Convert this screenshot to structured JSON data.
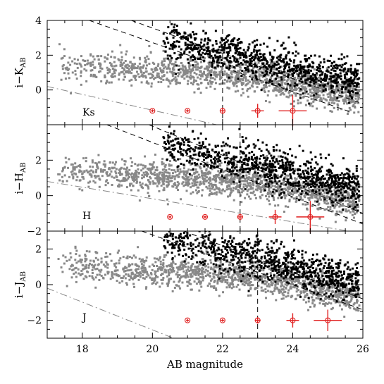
{
  "chart_data": [
    {
      "type": "scatter",
      "band": "Ks",
      "ylabel_main": "i−K",
      "ylabel_sub": "AB",
      "xlim": [
        17,
        26
      ],
      "ylim": [
        -2,
        4
      ],
      "yticks": [
        0,
        2,
        4
      ],
      "error_bars": [
        {
          "x": 20,
          "y": -1.2,
          "xerr": 0.03,
          "yerr": 0.05
        },
        {
          "x": 21,
          "y": -1.2,
          "xerr": 0.05,
          "yerr": 0.08
        },
        {
          "x": 22,
          "y": -1.2,
          "xerr": 0.08,
          "yerr": 0.18
        },
        {
          "x": 23,
          "y": -1.2,
          "xerr": 0.18,
          "yerr": 0.4
        },
        {
          "x": 24,
          "y": -1.2,
          "xerr": 0.4,
          "yerr": 0.9
        }
      ],
      "vertical_line_x": 22,
      "dashed_lines": [
        {
          "x1": 18.2,
          "y1": 4.0,
          "x2": 25.7,
          "y2": -1.3
        },
        {
          "x1": 19.4,
          "y1": 4.0,
          "x2": 26.0,
          "y2": -0.8
        }
      ],
      "dashdot_line": {
        "x1": 17.0,
        "y1": 0.2,
        "x2": 26.0,
        "y2": -3.9
      }
    },
    {
      "type": "scatter",
      "band": "H",
      "ylabel_main": "i−H",
      "ylabel_sub": "AB",
      "xlim": [
        17,
        26
      ],
      "ylim": [
        -2,
        4
      ],
      "yticks": [
        -2,
        0,
        2
      ],
      "error_bars": [
        {
          "x": 20.5,
          "y": -1.2,
          "xerr": 0.03,
          "yerr": 0.05
        },
        {
          "x": 21.5,
          "y": -1.2,
          "xerr": 0.05,
          "yerr": 0.08
        },
        {
          "x": 22.5,
          "y": -1.2,
          "xerr": 0.08,
          "yerr": 0.18
        },
        {
          "x": 23.5,
          "y": -1.2,
          "xerr": 0.18,
          "yerr": 0.4
        },
        {
          "x": 24.5,
          "y": -1.2,
          "xerr": 0.4,
          "yerr": 0.9
        }
      ],
      "vertical_line_x": 22.5,
      "dashed_lines": [
        {
          "x1": 18.7,
          "y1": 4.0,
          "x2": 26.0,
          "y2": -1.6
        },
        {
          "x1": 19.9,
          "y1": 4.0,
          "x2": 26.0,
          "y2": -1.0
        }
      ],
      "dashdot_line": {
        "x1": 17.0,
        "y1": 0.8,
        "x2": 25.6,
        "y2": -2.0
      }
    },
    {
      "type": "scatter",
      "band": "J",
      "ylabel_main": "i−J",
      "ylabel_sub": "AB",
      "xlim": [
        17,
        26
      ],
      "ylim": [
        -3,
        3
      ],
      "yticks": [
        -2,
        0,
        2
      ],
      "xticks": [
        18,
        20,
        22,
        24,
        26
      ],
      "xlabel": "AB magnitude",
      "error_bars": [
        {
          "x": 21,
          "y": -2.0,
          "xerr": 0.03,
          "yerr": 0.05
        },
        {
          "x": 22,
          "y": -2.0,
          "xerr": 0.05,
          "yerr": 0.08
        },
        {
          "x": 23,
          "y": -2.0,
          "xerr": 0.08,
          "yerr": 0.18
        },
        {
          "x": 24,
          "y": -2.0,
          "xerr": 0.18,
          "yerr": 0.4
        },
        {
          "x": 25,
          "y": -2.0,
          "xerr": 0.4,
          "yerr": 0.6
        }
      ],
      "vertical_line_x": 23,
      "dashed_lines": [
        {
          "x1": 19.7,
          "y1": 3.0,
          "x2": 26.0,
          "y2": -1.4
        },
        {
          "x1": 20.9,
          "y1": 3.0,
          "x2": 26.0,
          "y2": -0.8
        }
      ],
      "dashdot_line": {
        "x1": 17.0,
        "y1": -0.2,
        "x2": 20.6,
        "y2": -3.0
      }
    }
  ],
  "colors": {
    "gray_points": "#888888",
    "black_points": "#000000",
    "error_bars": "#e02020"
  }
}
